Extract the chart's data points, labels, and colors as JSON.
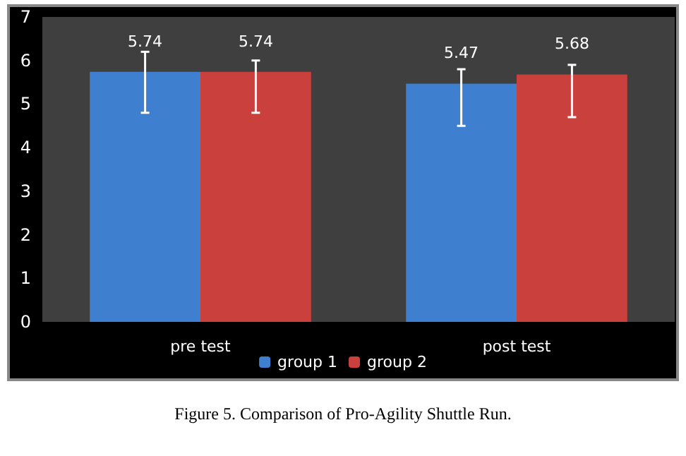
{
  "chart_data": {
    "type": "bar",
    "categories": [
      "pre test",
      "post test"
    ],
    "series": [
      {
        "name": "group 1",
        "color": "#3f7fd0",
        "values": [
          5.74,
          5.47
        ],
        "errors": [
          [
            4.8,
            6.2
          ],
          [
            4.5,
            5.8
          ]
        ]
      },
      {
        "name": "group 2",
        "color": "#c9403d",
        "values": [
          5.74,
          5.68
        ],
        "errors": [
          [
            4.8,
            6.0
          ],
          [
            4.7,
            5.9
          ]
        ]
      }
    ],
    "ylim": [
      0,
      7
    ],
    "yticks": [
      0,
      1,
      2,
      3,
      4,
      5,
      6,
      7
    ],
    "grid": false,
    "legend": "bottom",
    "data_labels": true,
    "annotations": [
      "Figure 5. Comparison of Pro-Agility Shuttle Run."
    ]
  }
}
